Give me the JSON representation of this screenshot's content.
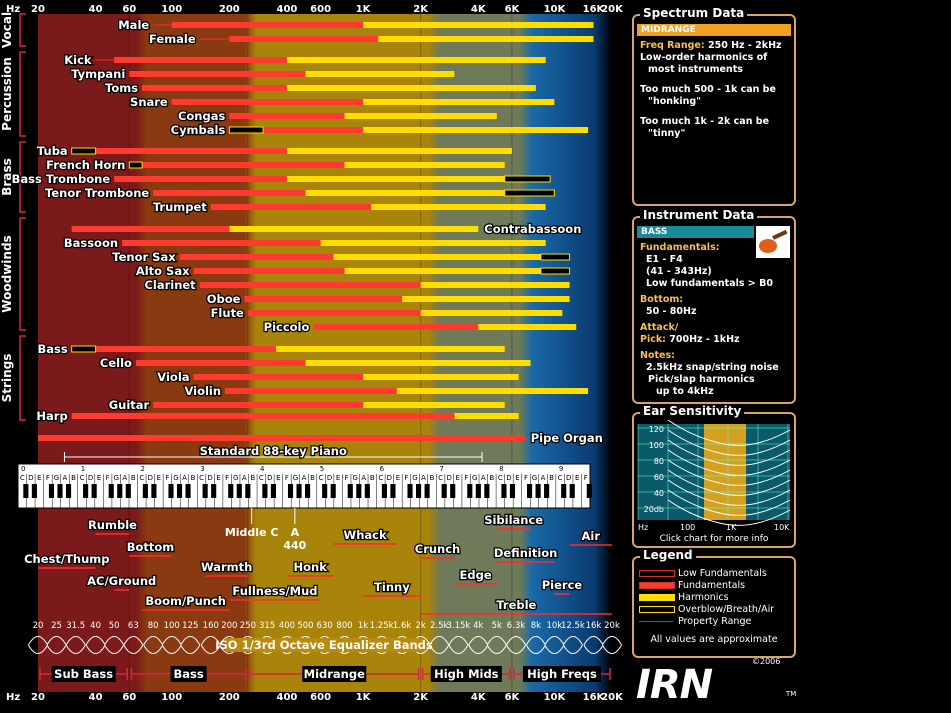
{
  "freq_labels": [
    [
      "Hz",
      "hz"
    ],
    [
      "20",
      20
    ],
    [
      "40",
      40
    ],
    [
      "60",
      60
    ],
    [
      "100",
      100
    ],
    [
      "200",
      200
    ],
    [
      "400",
      400
    ],
    [
      "600",
      600
    ],
    [
      "1K",
      1000
    ],
    [
      "2K",
      2000
    ],
    [
      "4K",
      4000
    ],
    [
      "6K",
      6000
    ],
    [
      "10K",
      10000
    ],
    [
      "16K",
      16000
    ],
    [
      "20K",
      20000
    ]
  ],
  "categories": [
    {
      "label": "Vocal",
      "y0": 14,
      "y1": 46
    },
    {
      "label": "Percussion",
      "y0": 52,
      "y1": 136
    },
    {
      "label": "Brass",
      "y0": 142,
      "y1": 212
    },
    {
      "label": "Woodwinds",
      "y0": 218,
      "y1": 330
    },
    {
      "label": "Strings",
      "y0": 336,
      "y1": 420
    }
  ],
  "chart_data": {
    "type": "bar",
    "xscale": "log",
    "xlim": [
      20,
      20000
    ],
    "instruments": [
      {
        "name": "Male",
        "side": "L",
        "bars": [
          {
            "k": "h",
            "a": 180,
            "b": 16000
          },
          {
            "k": "f",
            "a": 100,
            "b": 1000
          },
          {
            "k": "x",
            "a": 8000,
            "b": 16000
          },
          {
            "k": "p",
            "a": 80,
            "b": 16000
          }
        ]
      },
      {
        "name": "Female",
        "side": "L",
        "bars": [
          {
            "k": "h",
            "a": 250,
            "b": 16000
          },
          {
            "k": "f",
            "a": 200,
            "b": 1200
          },
          {
            "k": "x",
            "a": 8000,
            "b": 16000
          },
          {
            "k": "p",
            "a": 140,
            "b": 16000
          }
        ]
      },
      {
        "name": "Kick",
        "side": "L",
        "bars": [
          {
            "k": "h",
            "a": 150,
            "b": 9000
          },
          {
            "k": "f",
            "a": 50,
            "b": 400
          },
          {
            "k": "p",
            "a": 40,
            "b": 9000
          }
        ]
      },
      {
        "name": "Tympani",
        "side": "L",
        "bars": [
          {
            "k": "h",
            "a": 200,
            "b": 3000
          },
          {
            "k": "f",
            "a": 60,
            "b": 500
          },
          {
            "k": "p",
            "a": 60,
            "b": 3000
          }
        ]
      },
      {
        "name": "Toms",
        "side": "L",
        "bars": [
          {
            "k": "h",
            "a": 200,
            "b": 8000
          },
          {
            "k": "f",
            "a": 70,
            "b": 400
          },
          {
            "k": "p",
            "a": 70,
            "b": 8000
          }
        ]
      },
      {
        "name": "Snare",
        "side": "L",
        "bars": [
          {
            "k": "h",
            "a": 250,
            "b": 10000
          },
          {
            "k": "f",
            "a": 100,
            "b": 1000
          },
          {
            "k": "p",
            "a": 100,
            "b": 10000
          }
        ]
      },
      {
        "name": "Congas",
        "side": "L",
        "bars": [
          {
            "k": "h",
            "a": 300,
            "b": 5000
          },
          {
            "k": "f",
            "a": 200,
            "b": 800
          },
          {
            "k": "p",
            "a": 200,
            "b": 5000
          }
        ]
      },
      {
        "name": "Cymbals",
        "side": "L",
        "bars": [
          {
            "k": "h",
            "a": 400,
            "b": 15000
          },
          {
            "k": "f",
            "a": 300,
            "b": 1000
          },
          {
            "k": "o",
            "a": 200,
            "b": 300
          },
          {
            "k": "p",
            "a": 200,
            "b": 15000
          }
        ]
      },
      {
        "name": "Tuba",
        "side": "L",
        "bars": [
          {
            "k": "h",
            "a": 370,
            "b": 6000
          },
          {
            "k": "f",
            "a": 40,
            "b": 400
          },
          {
            "k": "o",
            "a": 30,
            "b": 40
          },
          {
            "k": "p",
            "a": 30,
            "b": 6000
          }
        ]
      },
      {
        "name": "French Horn",
        "side": "L",
        "bars": [
          {
            "k": "h",
            "a": 250,
            "b": 5500
          },
          {
            "k": "f",
            "a": 60,
            "b": 800
          },
          {
            "k": "o",
            "a": 60,
            "b": 70
          },
          {
            "k": "p",
            "a": 60,
            "b": 5500
          }
        ]
      },
      {
        "name": "Bass Trombone",
        "side": "L",
        "bars": [
          {
            "k": "h",
            "a": 220,
            "b": 5500
          },
          {
            "k": "f",
            "a": 50,
            "b": 400
          },
          {
            "k": "o",
            "a": 5500,
            "b": 9500
          },
          {
            "k": "p",
            "a": 50,
            "b": 9500
          }
        ]
      },
      {
        "name": "Tenor Trombone",
        "side": "L",
        "bars": [
          {
            "k": "h",
            "a": 300,
            "b": 5500
          },
          {
            "k": "f",
            "a": 80,
            "b": 500
          },
          {
            "k": "o",
            "a": 5500,
            "b": 10000
          },
          {
            "k": "p",
            "a": 80,
            "b": 10000
          }
        ]
      },
      {
        "name": "Trumpet",
        "side": "L",
        "bars": [
          {
            "k": "h",
            "a": 400,
            "b": 9000
          },
          {
            "k": "f",
            "a": 160,
            "b": 1100
          },
          {
            "k": "p",
            "a": 160,
            "b": 9000
          }
        ]
      },
      {
        "name": "Contrabassoon",
        "side": "R",
        "bars": [
          {
            "k": "h",
            "a": 200,
            "b": 4000
          },
          {
            "k": "f",
            "a": 30,
            "b": 200
          },
          {
            "k": "p",
            "a": 30,
            "b": 4000
          }
        ]
      },
      {
        "name": "Bassoon",
        "side": "L",
        "bars": [
          {
            "k": "h",
            "a": 300,
            "b": 9000
          },
          {
            "k": "f",
            "a": 55,
            "b": 600
          },
          {
            "k": "p",
            "a": 55,
            "b": 9000
          }
        ]
      },
      {
        "name": "Tenor Sax",
        "side": "L",
        "bars": [
          {
            "k": "h",
            "a": 400,
            "b": 8500
          },
          {
            "k": "f",
            "a": 110,
            "b": 700
          },
          {
            "k": "o",
            "a": 8500,
            "b": 12000
          },
          {
            "k": "p",
            "a": 110,
            "b": 12000
          }
        ]
      },
      {
        "name": "Alto Sax",
        "side": "L",
        "bars": [
          {
            "k": "h",
            "a": 450,
            "b": 8500
          },
          {
            "k": "f",
            "a": 130,
            "b": 800
          },
          {
            "k": "o",
            "a": 8500,
            "b": 12000
          },
          {
            "k": "p",
            "a": 130,
            "b": 12000
          }
        ]
      },
      {
        "name": "Clarinet",
        "side": "L",
        "bars": [
          {
            "k": "h",
            "a": 350,
            "b": 12000
          },
          {
            "k": "f",
            "a": 140,
            "b": 2000
          },
          {
            "k": "p",
            "a": 140,
            "b": 12000
          }
        ]
      },
      {
        "name": "Oboe",
        "side": "L",
        "bars": [
          {
            "k": "h",
            "a": 500,
            "b": 12000
          },
          {
            "k": "f",
            "a": 240,
            "b": 1600
          },
          {
            "k": "p",
            "a": 240,
            "b": 12000
          }
        ]
      },
      {
        "name": "Flute",
        "side": "L",
        "bars": [
          {
            "k": "h",
            "a": 500,
            "b": 11000
          },
          {
            "k": "f",
            "a": 250,
            "b": 2000
          },
          {
            "k": "p",
            "a": 250,
            "b": 11000
          }
        ]
      },
      {
        "name": "Piccolo",
        "side": "L",
        "bars": [
          {
            "k": "h",
            "a": 1000,
            "b": 13000
          },
          {
            "k": "f",
            "a": 550,
            "b": 4000
          },
          {
            "k": "p",
            "a": 550,
            "b": 13000
          }
        ]
      },
      {
        "name": "Bass",
        "side": "L",
        "bars": [
          {
            "k": "h",
            "a": 350,
            "b": 5500
          },
          {
            "k": "f",
            "a": 40,
            "b": 350
          },
          {
            "k": "o",
            "a": 30,
            "b": 40
          },
          {
            "k": "p",
            "a": 30,
            "b": 5500
          }
        ]
      },
      {
        "name": "Cello",
        "side": "L",
        "bars": [
          {
            "k": "h",
            "a": 300,
            "b": 7500
          },
          {
            "k": "f",
            "a": 65,
            "b": 500
          },
          {
            "k": "p",
            "a": 65,
            "b": 7500
          }
        ]
      },
      {
        "name": "Viola",
        "side": "L",
        "bars": [
          {
            "k": "h",
            "a": 450,
            "b": 6500
          },
          {
            "k": "f",
            "a": 130,
            "b": 1000
          },
          {
            "k": "p",
            "a": 130,
            "b": 6500
          }
        ]
      },
      {
        "name": "Violin",
        "side": "L",
        "bars": [
          {
            "k": "h",
            "a": 450,
            "b": 15000
          },
          {
            "k": "f",
            "a": 190,
            "b": 1500
          },
          {
            "k": "p",
            "a": 190,
            "b": 15000
          }
        ]
      },
      {
        "name": "Guitar",
        "side": "L",
        "bars": [
          {
            "k": "h",
            "a": 400,
            "b": 5500
          },
          {
            "k": "f",
            "a": 80,
            "b": 1000
          },
          {
            "k": "p",
            "a": 80,
            "b": 5500
          }
        ]
      },
      {
        "name": "Harp",
        "side": "L",
        "bars": [
          {
            "k": "h",
            "a": 3000,
            "b": 6500
          },
          {
            "k": "f",
            "a": 30,
            "b": 3000
          },
          {
            "k": "p",
            "a": 30,
            "b": 6500
          }
        ]
      },
      {
        "name": "Pipe Organ",
        "side": "R",
        "bars": [
          {
            "k": "f",
            "a": 20,
            "b": 7000
          },
          {
            "k": "p",
            "a": 20,
            "b": 7000
          }
        ]
      }
    ]
  },
  "piano": {
    "label": "Standard 88-key Piano",
    "octaves": [
      "0",
      "1",
      "2",
      "3",
      "4",
      "5",
      "6",
      "7",
      "8",
      "9"
    ],
    "notes": [
      "C",
      "D",
      "E",
      "F",
      "G",
      "A",
      "B"
    ]
  },
  "regions": [
    {
      "label": "Rumble",
      "f0": 40,
      "f1": 60,
      "row": 0
    },
    {
      "label": "Chest/Thump",
      "f0": 20,
      "f1": 40,
      "row": 1
    },
    {
      "label": "Bottom",
      "f0": 60,
      "f1": 100,
      "row": 1
    },
    {
      "label": "AC/Ground",
      "f0": 50,
      "f1": 60,
      "row": 2
    },
    {
      "label": "Warmth",
      "f0": 150,
      "f1": 250,
      "row": 2
    },
    {
      "label": "Boom/Punch",
      "f0": 70,
      "f1": 200,
      "row": 3
    },
    {
      "label": "Fullness/Mud",
      "f0": 200,
      "f1": 600,
      "row": 3
    },
    {
      "label": "Honk",
      "f0": 400,
      "f1": 700,
      "row": 2
    },
    {
      "label": "Whack",
      "f0": 700,
      "f1": 1500,
      "row": 0
    },
    {
      "label": "Tinny",
      "f0": 1000,
      "f1": 2000,
      "row": 3
    },
    {
      "label": "Crunch",
      "f0": 2000,
      "f1": 3000,
      "row": 1
    },
    {
      "label": "Edge",
      "f0": 3000,
      "f1": 5000,
      "row": 2
    },
    {
      "label": "Sibilance",
      "f0": 5000,
      "f1": 7500,
      "row": 0
    },
    {
      "label": "Definition",
      "f0": 5000,
      "f1": 10000,
      "row": 1
    },
    {
      "label": "Pierce",
      "f0": 10000,
      "f1": 12000,
      "row": 2
    },
    {
      "label": "Air",
      "f0": 12000,
      "f1": 20000,
      "row": 0
    },
    {
      "label": "Treble",
      "f0": 2000,
      "f1": 20000,
      "row": 4
    }
  ],
  "middle_c": "Middle C",
  "a440": [
    "A",
    "440"
  ],
  "eq": {
    "label": "ISO 1/3rd Octave Equalizer Bands",
    "bands": [
      "20",
      "25",
      "31.5",
      "40",
      "50",
      "63",
      "80",
      "100",
      "125",
      "160",
      "200",
      "250",
      "315",
      "400",
      "500",
      "630",
      "800",
      "1k",
      "1.25k",
      "1.6k",
      "2k",
      "2.5k",
      "3.15k",
      "4k",
      "5k",
      "6.3k",
      "8k",
      "10k",
      "12.5k",
      "16k",
      "20k"
    ]
  },
  "ranges": [
    {
      "label": "Sub Bass",
      "f0": 20,
      "f1": 60
    },
    {
      "label": "Bass",
      "f0": 60,
      "f1": 250
    },
    {
      "label": "Midrange",
      "f0": 250,
      "f1": 2000
    },
    {
      "label": "High Mids",
      "f0": 2000,
      "f1": 6000
    },
    {
      "label": "High Freqs",
      "f0": 6000,
      "f1": 20000
    }
  ],
  "colors": {
    "f": "#ff3b2f",
    "h": "#ffdd00",
    "o": "#000000",
    "subbass": "#7a1a1a",
    "bass": "#8a3a10",
    "midrange": "#a8840a",
    "highmids": "#6e7a58",
    "highfreq": "#1a6aa8"
  },
  "spectrum": {
    "title": "Spectrum Data",
    "band": "MIDRANGE",
    "range_label": "Freq Range:",
    "range_value": "250 Hz - 2kHz",
    "l1": "Low-order harmonics of",
    "l2": "most instruments",
    "l3": "Too much 500 - 1k can be",
    "l4": "\"honking\"",
    "l5": "Too much 1k - 2k can be",
    "l6": "\"tinny\""
  },
  "instrument": {
    "title": "Instrument Data",
    "name": "BASS",
    "fund_label": "Fundamentals:",
    "f1": "E1 - F4",
    "f2": "(41 - 343Hz)",
    "f3": "Low fundamentals > B0",
    "bottom_label": "Bottom:",
    "bottom": "50 - 80Hz",
    "attack_label": "Attack/",
    "pick_label": "Pick:",
    "pick_value": "700Hz - 1kHz",
    "notes_label": "Notes:",
    "n1": "2.5kHz snap/string noise",
    "n2": "Pick/slap harmonics",
    "n3": "up to 4kHz"
  },
  "ear": {
    "title": "Ear Sensitivity",
    "ylabels": [
      "120",
      "100",
      "80",
      "60",
      "40",
      "20db"
    ],
    "xlabels": [
      "Hz",
      "100",
      "1K",
      "10K"
    ],
    "caption": "Click chart for more info"
  },
  "legend": {
    "title": "Legend",
    "items": [
      "Low Fundamentals",
      "Fundamentals",
      "Harmonics",
      "Overblow/Breath/Air",
      "Property Range"
    ],
    "note": "All values are approximate"
  },
  "brand": {
    "logo": "IRN",
    "year": "©2006",
    "tm": "TM"
  }
}
